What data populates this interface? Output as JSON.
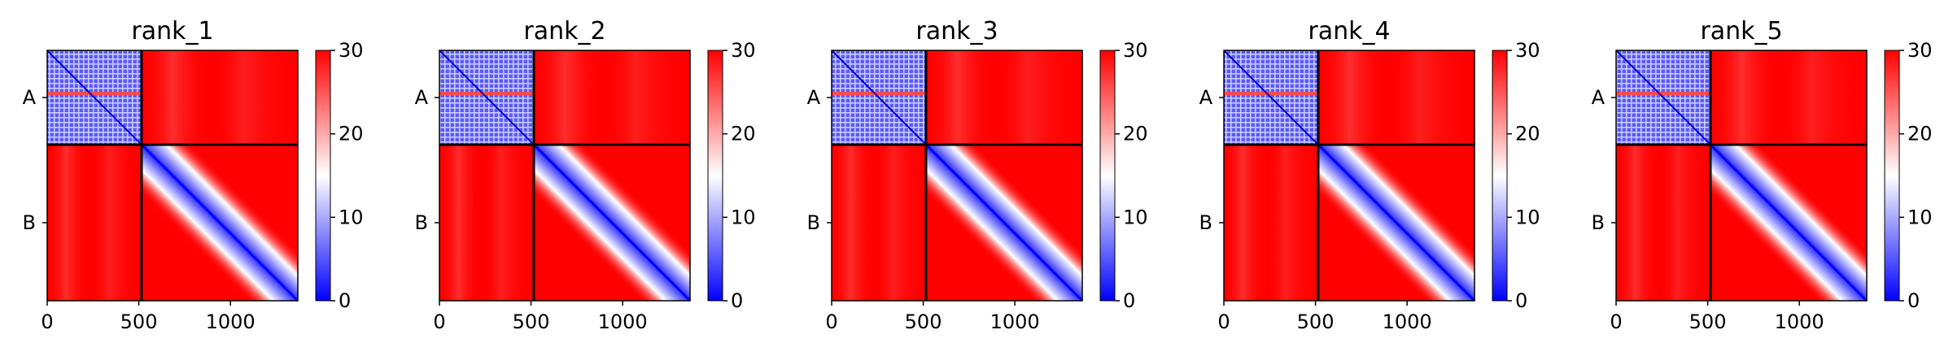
{
  "chart_data": [
    {
      "type": "heatmap",
      "title": "rank_1",
      "ytick_labels": [
        "A",
        "B"
      ],
      "xticks": [
        0,
        500,
        1000
      ],
      "xlim": [
        0,
        1368
      ],
      "chain_break": 515,
      "colorbar": {
        "min": 0,
        "max": 30,
        "ticks": [
          0,
          10,
          20,
          30
        ],
        "colors": [
          "#0000ff",
          "#ffffff",
          "#ff0000"
        ]
      }
    },
    {
      "type": "heatmap",
      "title": "rank_2",
      "ytick_labels": [
        "A",
        "B"
      ],
      "xticks": [
        0,
        500,
        1000
      ],
      "xlim": [
        0,
        1368
      ],
      "chain_break": 515,
      "colorbar": {
        "min": 0,
        "max": 30,
        "ticks": [
          0,
          10,
          20,
          30
        ],
        "colors": [
          "#0000ff",
          "#ffffff",
          "#ff0000"
        ]
      }
    },
    {
      "type": "heatmap",
      "title": "rank_3",
      "ytick_labels": [
        "A",
        "B"
      ],
      "xticks": [
        0,
        500,
        1000
      ],
      "xlim": [
        0,
        1368
      ],
      "chain_break": 515,
      "colorbar": {
        "min": 0,
        "max": 30,
        "ticks": [
          0,
          10,
          20,
          30
        ],
        "colors": [
          "#0000ff",
          "#ffffff",
          "#ff0000"
        ]
      }
    },
    {
      "type": "heatmap",
      "title": "rank_4",
      "ytick_labels": [
        "A",
        "B"
      ],
      "xticks": [
        0,
        500,
        1000
      ],
      "xlim": [
        0,
        1368
      ],
      "chain_break": 515,
      "colorbar": {
        "min": 0,
        "max": 30,
        "ticks": [
          0,
          10,
          20,
          30
        ],
        "colors": [
          "#0000ff",
          "#ffffff",
          "#ff0000"
        ]
      }
    },
    {
      "type": "heatmap",
      "title": "rank_5",
      "ytick_labels": [
        "A",
        "B"
      ],
      "xticks": [
        0,
        500,
        1000
      ],
      "xlim": [
        0,
        1368
      ],
      "chain_break": 515,
      "colorbar": {
        "min": 0,
        "max": 30,
        "ticks": [
          0,
          10,
          20,
          30
        ],
        "colors": [
          "#0000ff",
          "#ffffff",
          "#ff0000"
        ]
      }
    }
  ]
}
